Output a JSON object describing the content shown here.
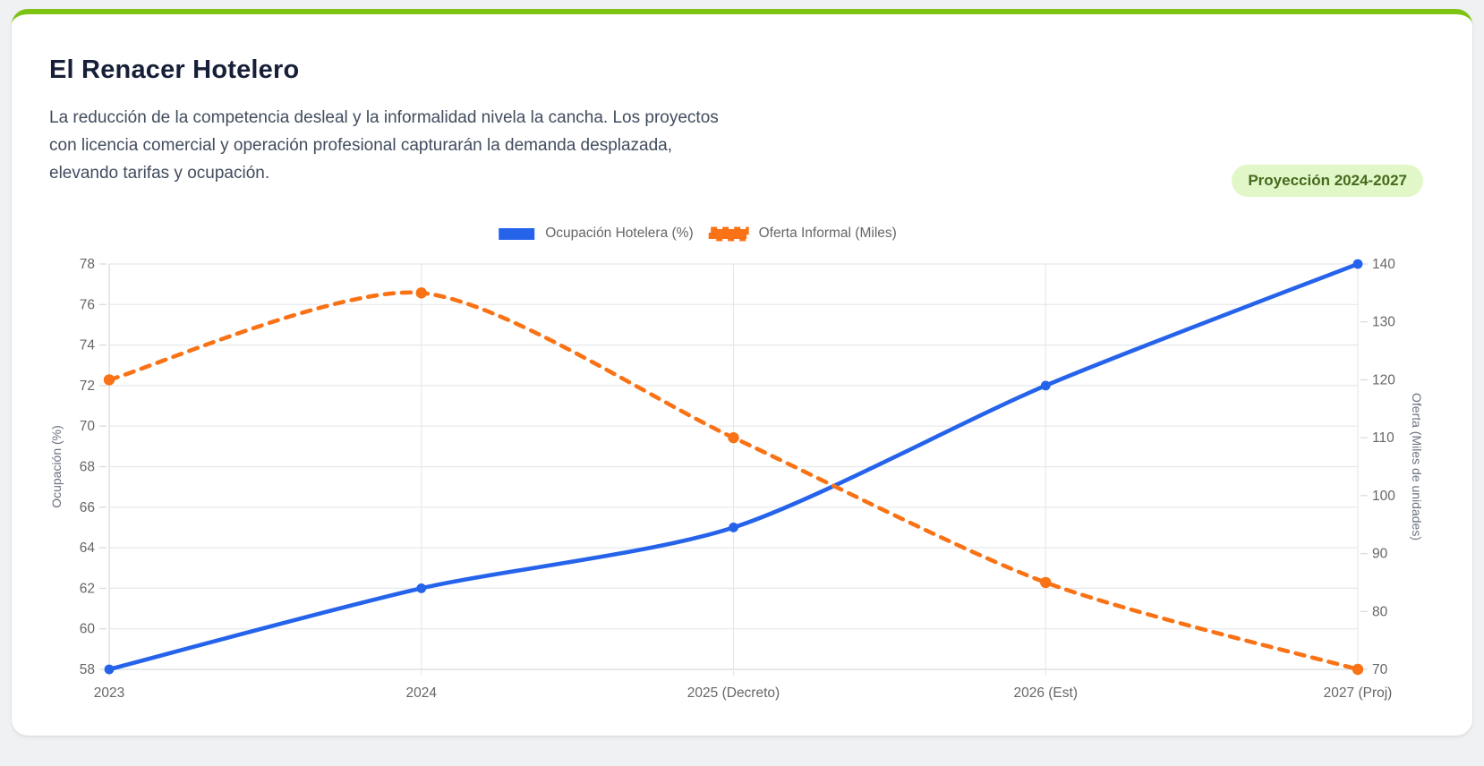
{
  "header": {
    "title": "El Renacer Hotelero",
    "description_lines": [
      "La reducción de la competencia desleal y la informalidad nivela la cancha. Los proyectos",
      "con licencia comercial y operación profesional capturarán la demanda desplazada,",
      "elevando tarifas y ocupación."
    ],
    "badge": "Proyección 2024-2027"
  },
  "colors": {
    "accent_green": "#7ec314",
    "badge_bg": "#e1f7c7",
    "badge_text": "#45691d",
    "series_blue": "#2563eb",
    "series_orange": "#f97316",
    "grid": "#e6e8eb",
    "axis_line": "#d6d9dd",
    "tick_text": "#666666",
    "axis_title_text": "#6b7280"
  },
  "chart_data": {
    "type": "line",
    "categories": [
      "2023",
      "2024",
      "2025 (Decreto)",
      "2026 (Est)",
      "2027 (Proj)"
    ],
    "series": [
      {
        "name": "Ocupación Hotelera (%)",
        "axis": "left",
        "style": "solid",
        "color": "#2563eb",
        "values": [
          58,
          62,
          65,
          72,
          78
        ]
      },
      {
        "name": "Oferta Informal (Miles)",
        "axis": "right",
        "style": "dashed",
        "color": "#f97316",
        "values": [
          120,
          135,
          110,
          85,
          70
        ]
      }
    ],
    "left_axis": {
      "label": "Ocupación (%)",
      "min": 58,
      "max": 78,
      "step": 2
    },
    "right_axis": {
      "label": "Oferta (Miles de unidades)",
      "min": 70,
      "max": 140,
      "step": 10
    },
    "legend_position": "top-center",
    "grid": true
  }
}
